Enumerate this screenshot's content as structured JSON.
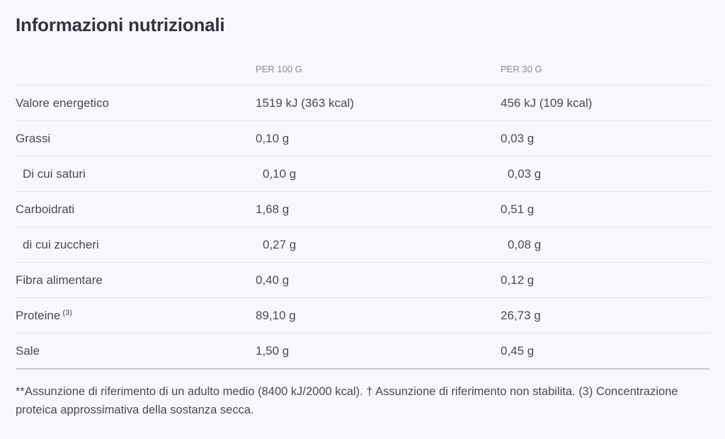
{
  "title": "Informazioni nutrizionali",
  "headers": [
    "",
    "PER 100 G",
    "PER 30 G"
  ],
  "rows": [
    {
      "label": "Valore energetico",
      "sup": "",
      "indent": false,
      "per100": "1519 kJ (363 kcal)",
      "per30": "456 kJ (109 kcal)"
    },
    {
      "label": "Grassi",
      "sup": "",
      "indent": false,
      "per100": "0,10 g",
      "per30": "0,03 g"
    },
    {
      "label": "Di cui saturi",
      "sup": "",
      "indent": true,
      "per100": "0,10 g",
      "per30": "0,03 g"
    },
    {
      "label": "Carboidrati",
      "sup": "",
      "indent": false,
      "per100": "1,68 g",
      "per30": "0,51 g"
    },
    {
      "label": "di cui zuccheri",
      "sup": "",
      "indent": true,
      "per100": "0,27 g",
      "per30": "0,08 g"
    },
    {
      "label": "Fibra alimentare",
      "sup": "",
      "indent": false,
      "per100": "0,40 g",
      "per30": "0,12 g"
    },
    {
      "label": "Proteine",
      "sup": "(3)",
      "indent": false,
      "per100": "89,10 g",
      "per30": "26,73 g"
    },
    {
      "label": "Sale",
      "sup": "",
      "indent": false,
      "per100": "1,50 g",
      "per30": "0,45 g"
    }
  ],
  "footnote": "**Assunzione di riferimento di un adulto medio (8400 kJ/2000 kcal). † Assunzione di riferimento non stabilita. (3) Concentrazione proteica approssimativa della sostanza secca."
}
